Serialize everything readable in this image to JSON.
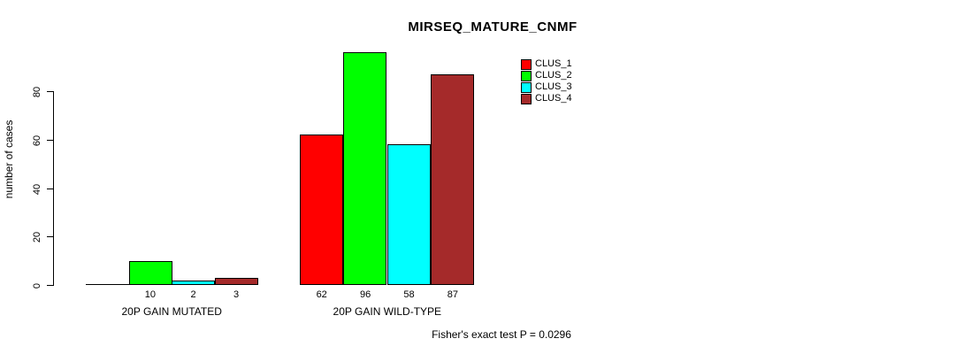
{
  "title": "MIRSEQ_MATURE_CNMF",
  "ylabel": "number of cases",
  "footnote": "Fisher's exact test P = 0.0296",
  "colors": {
    "clus_1": "#FF0000",
    "clus_2": "#00FF00",
    "clus_3": "#00FFFF",
    "clus_4": "#A52A2A",
    "axis": "#000000",
    "background": "#FFFFFF"
  },
  "chart_data": {
    "type": "bar",
    "title": "MIRSEQ_MATURE_CNMF",
    "xlabel": "",
    "ylabel": "number of cases",
    "categories": [
      "20P GAIN MUTATED",
      "20P GAIN WILD-TYPE"
    ],
    "series": [
      {
        "name": "CLUS_1",
        "color": "#FF0000",
        "values": [
          0,
          62
        ]
      },
      {
        "name": "CLUS_2",
        "color": "#00FF00",
        "values": [
          10,
          96
        ]
      },
      {
        "name": "CLUS_3",
        "color": "#00FFFF",
        "values": [
          2,
          58
        ]
      },
      {
        "name": "CLUS_4",
        "color": "#A52A2A",
        "values": [
          3,
          87
        ]
      }
    ],
    "bar_value_labels": [
      [
        "",
        "10",
        "2",
        "3"
      ],
      [
        "62",
        "96",
        "58",
        "87"
      ]
    ],
    "yticks": [
      0,
      20,
      40,
      60,
      80
    ],
    "ylim": [
      0,
      96
    ],
    "grid": false,
    "legend_position": "top-right",
    "annotation": "Fisher's exact test P = 0.0296"
  },
  "legend": {
    "entries": [
      {
        "label": "CLUS_1",
        "color": "#FF0000"
      },
      {
        "label": "CLUS_2",
        "color": "#00FF00"
      },
      {
        "label": "CLUS_3",
        "color": "#00FFFF"
      },
      {
        "label": "CLUS_4",
        "color": "#A52A2A"
      }
    ]
  }
}
